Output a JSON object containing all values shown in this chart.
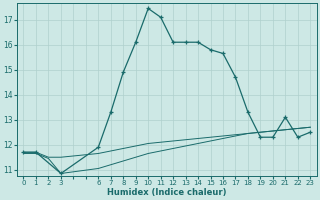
{
  "xlabel": "Humidex (Indice chaleur)",
  "bg_color": "#cde8e5",
  "grid_color": "#b0d0cd",
  "line_color": "#1a6b6b",
  "xlim": [
    -0.5,
    23.5
  ],
  "ylim": [
    10.75,
    17.65
  ],
  "yticks": [
    11,
    12,
    13,
    14,
    15,
    16,
    17
  ],
  "xticks_all": [
    0,
    1,
    2,
    3,
    4,
    5,
    6,
    7,
    8,
    9,
    10,
    11,
    12,
    13,
    14,
    15,
    16,
    17,
    18,
    19,
    20,
    21,
    22,
    23
  ],
  "xtick_labels": [
    "0",
    "1",
    "2",
    "3",
    "",
    "",
    "6",
    "7",
    "8",
    "9",
    "10",
    "11",
    "12",
    "13",
    "14",
    "15",
    "16",
    "17",
    "18",
    "19",
    "20",
    "21",
    "22",
    "23"
  ],
  "curve1_x": [
    0,
    1,
    3,
    6,
    7,
    8,
    9,
    10,
    11,
    12,
    13,
    14,
    15,
    16,
    17,
    18,
    19,
    20,
    21,
    22,
    23
  ],
  "curve1_y": [
    11.7,
    11.7,
    10.85,
    11.9,
    13.3,
    14.9,
    16.1,
    17.45,
    17.1,
    16.1,
    16.1,
    16.1,
    15.8,
    15.65,
    14.7,
    13.3,
    12.3,
    12.3,
    13.1,
    12.3,
    12.5
  ],
  "curve2_x": [
    0,
    1,
    2,
    3,
    6,
    7,
    8,
    9,
    10,
    11,
    12,
    13,
    14,
    15,
    16,
    17,
    18,
    19,
    20,
    21,
    22,
    23
  ],
  "curve2_y": [
    11.7,
    11.7,
    11.5,
    11.5,
    11.65,
    11.75,
    11.85,
    11.95,
    12.05,
    12.1,
    12.15,
    12.2,
    12.25,
    12.3,
    12.35,
    12.4,
    12.45,
    12.5,
    12.55,
    12.6,
    12.65,
    12.7
  ],
  "curve3_x": [
    0,
    1,
    2,
    3,
    6,
    7,
    8,
    9,
    10,
    11,
    12,
    13,
    14,
    15,
    16,
    17,
    18,
    19,
    20,
    21,
    22,
    23
  ],
  "curve3_y": [
    11.65,
    11.65,
    11.45,
    10.85,
    11.05,
    11.2,
    11.35,
    11.5,
    11.65,
    11.75,
    11.85,
    11.95,
    12.05,
    12.15,
    12.25,
    12.35,
    12.45,
    12.5,
    12.55,
    12.6,
    12.65,
    12.7
  ]
}
